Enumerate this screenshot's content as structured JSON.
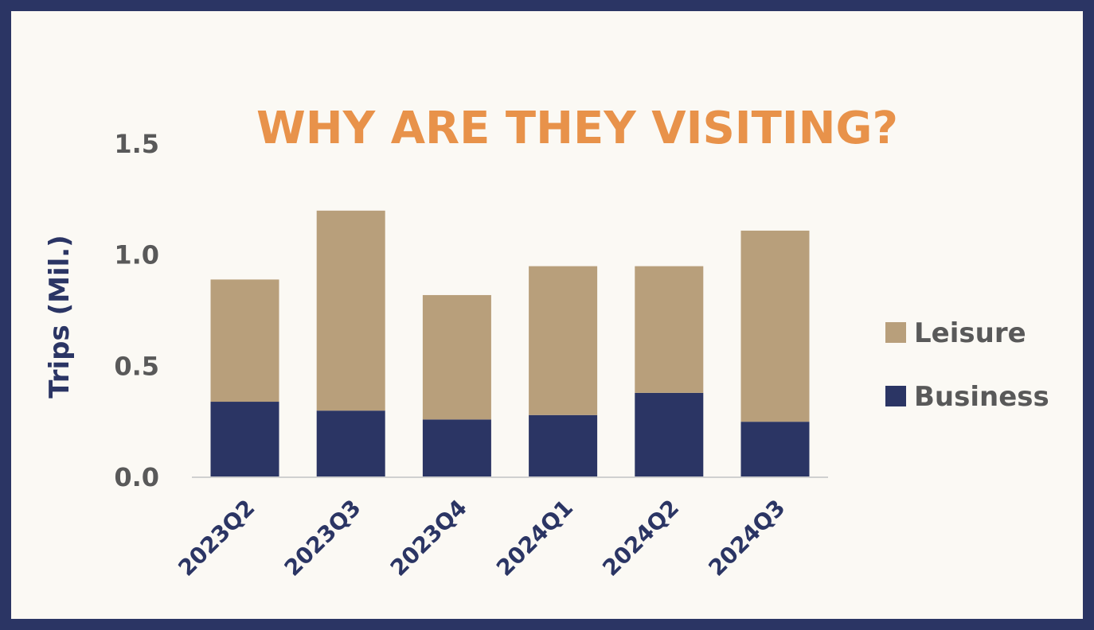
{
  "chart_data": {
    "type": "bar",
    "stacked": true,
    "title": "WHY ARE THEY VISITING?",
    "ylabel": "Trips (Mil.)",
    "xlabel": "",
    "ylim": [
      0,
      1.5
    ],
    "yticks": [
      "0.0",
      "0.5",
      "1.0",
      "1.5"
    ],
    "grid": false,
    "legend_position": "right",
    "categories": [
      "2023Q2",
      "2023Q3",
      "2023Q4",
      "2024Q1",
      "2024Q2",
      "2024Q3"
    ],
    "series": [
      {
        "name": "Business",
        "values": [
          0.34,
          0.3,
          0.26,
          0.28,
          0.38,
          0.25
        ],
        "color": "#2b3564"
      },
      {
        "name": "Leisure",
        "values": [
          0.55,
          0.9,
          0.56,
          0.67,
          0.57,
          0.86
        ],
        "color": "#b89f7b"
      }
    ]
  }
}
